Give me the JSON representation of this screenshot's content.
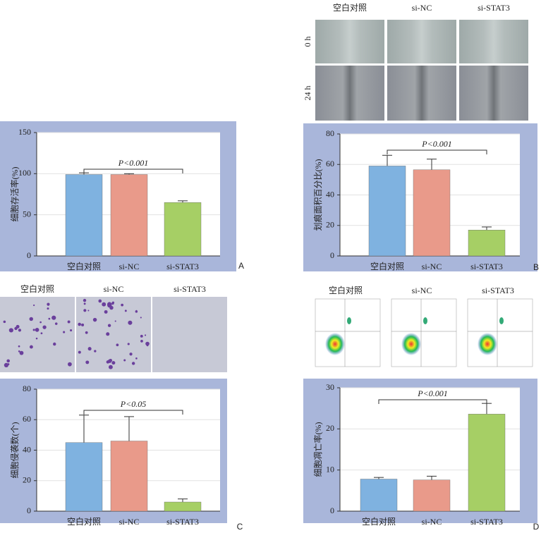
{
  "chart_data": [
    {
      "type": "bar",
      "ylabel": "细胞存活率(%)",
      "categories": [
        "空白对照",
        "si-NC",
        "si-STAT3"
      ],
      "values": [
        99,
        99,
        65
      ],
      "errors": [
        2,
        1,
        2
      ],
      "colors": [
        "#7fb2e0",
        "#e99a8a",
        "#a6cf65"
      ],
      "ylim": [
        0,
        150
      ],
      "yticks": [
        0,
        50,
        100,
        150
      ],
      "grid": true,
      "annotation": "P<0.001",
      "panel": "A"
    },
    {
      "type": "bar",
      "ylabel": "划痕面积百分比(%)",
      "categories": [
        "空白对照",
        "si-NC",
        "si-STAT3"
      ],
      "values": [
        59,
        56.5,
        17
      ],
      "errors": [
        7,
        7,
        2
      ],
      "colors": [
        "#7fb2e0",
        "#e99a8a",
        "#a6cf65"
      ],
      "ylim": [
        0,
        80
      ],
      "yticks": [
        0,
        20,
        40,
        60,
        80
      ],
      "grid": true,
      "annotation": "P<0.001",
      "panel": "B"
    },
    {
      "type": "bar",
      "ylabel": "细胞侵袭数(个)",
      "categories": [
        "空白对照",
        "si-NC",
        "si-STAT3"
      ],
      "values": [
        45,
        46,
        6
      ],
      "errors": [
        18,
        16,
        2
      ],
      "colors": [
        "#7fb2e0",
        "#e99a8a",
        "#a6cf65"
      ],
      "ylim": [
        0,
        80
      ],
      "yticks": [
        0,
        20,
        40,
        60,
        80
      ],
      "grid": true,
      "annotation": "P<0.05",
      "panel": "C"
    },
    {
      "type": "bar",
      "ylabel": "细胞凋亡率(%)",
      "categories": [
        "空白对照",
        "si-NC",
        "si-STAT3"
      ],
      "values": [
        7.8,
        7.6,
        23.6
      ],
      "errors": [
        0.4,
        0.9,
        2.6
      ],
      "colors": [
        "#7fb2e0",
        "#e99a8a",
        "#a6cf65"
      ],
      "ylim": [
        0,
        30
      ],
      "yticks": [
        0,
        10,
        20,
        30
      ],
      "grid": true,
      "annotation": "P<0.001",
      "panel": "D"
    }
  ],
  "figure": {
    "migration_columns": [
      "空白对照",
      "si-NC",
      "si-STAT3"
    ],
    "migration_rows": [
      "0 h",
      "24 h"
    ],
    "invasion_columns": [
      "空白对照",
      "si-NC",
      "si-STAT3"
    ],
    "flow_columns": [
      "空白对照",
      "si-NC",
      "si-STAT3"
    ]
  }
}
